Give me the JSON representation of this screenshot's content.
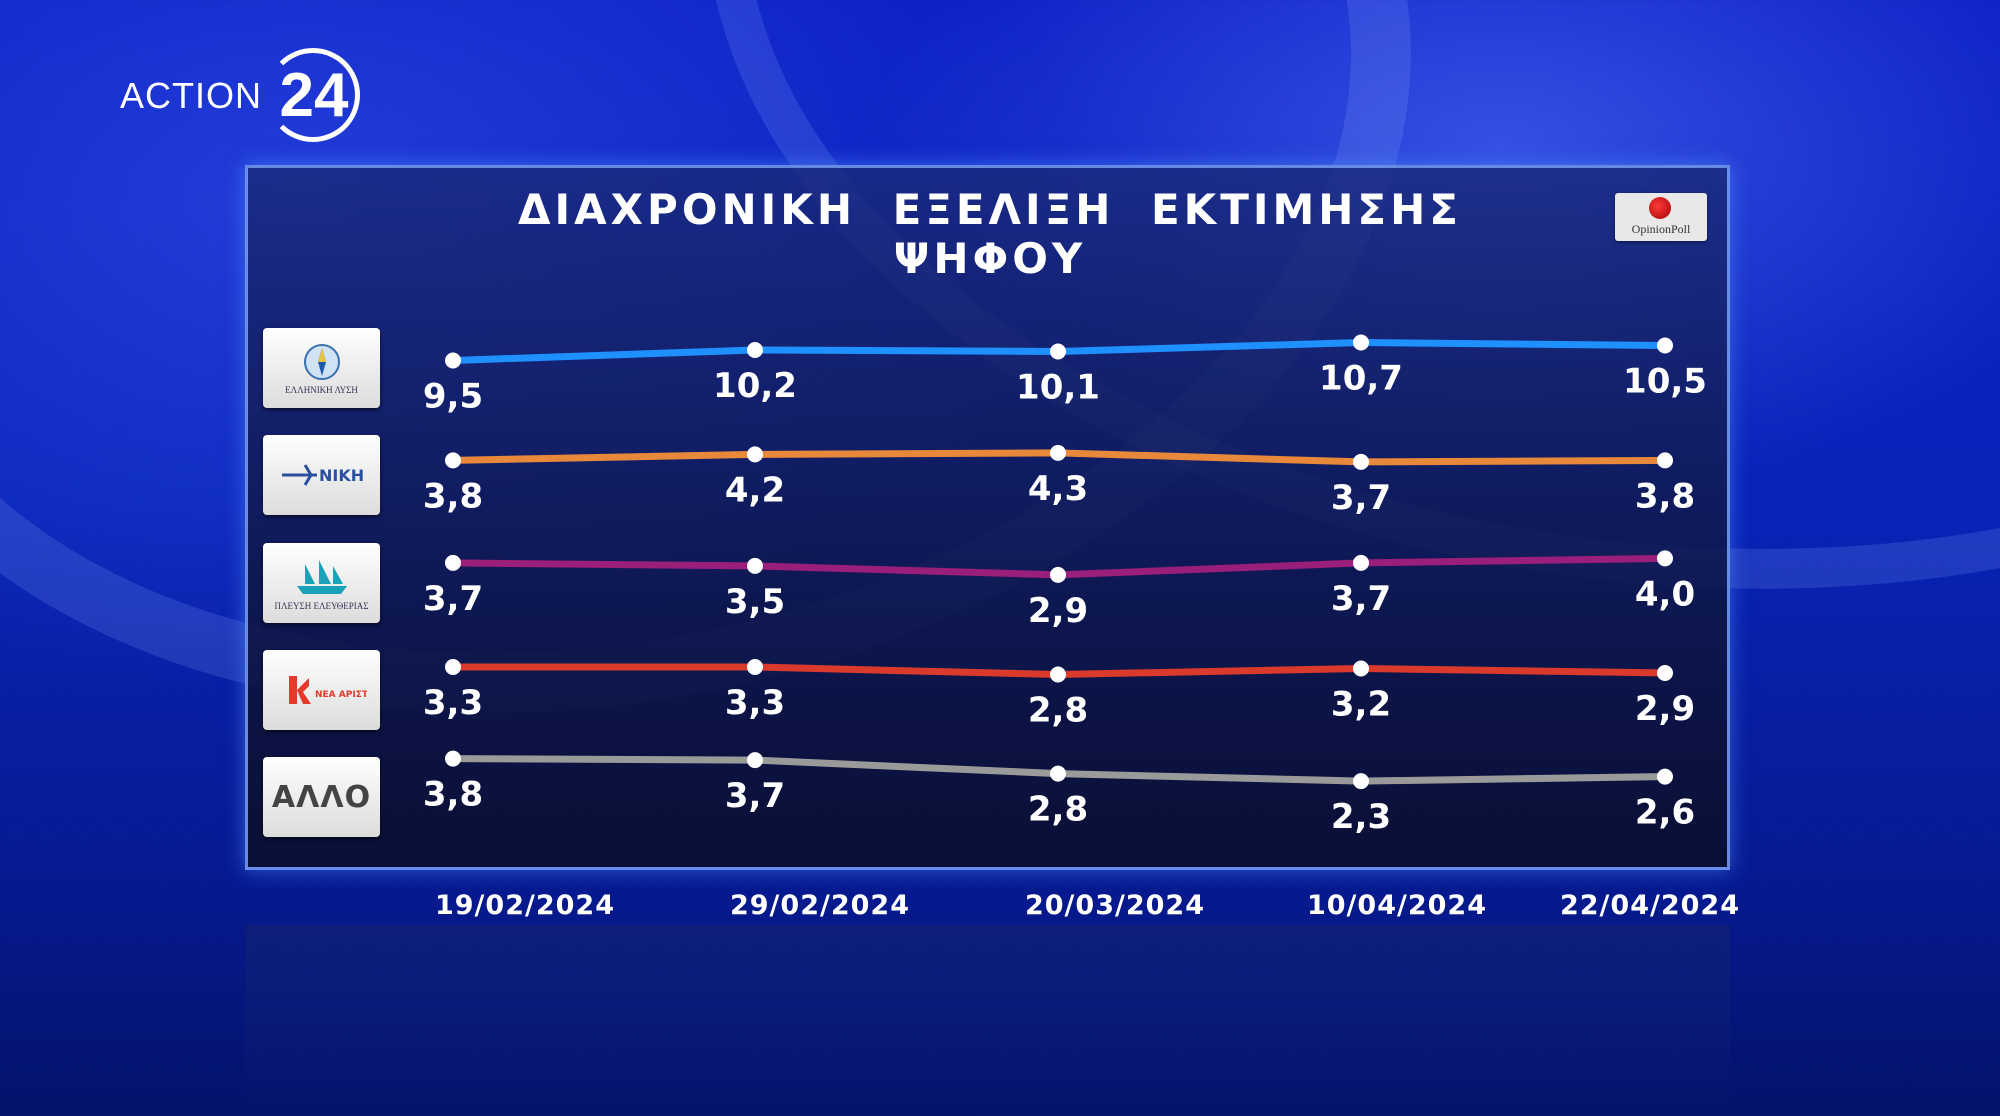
{
  "channel": {
    "text": "ACTION",
    "number": "24"
  },
  "badge": {
    "text": "OpinionPoll"
  },
  "chart_data": {
    "type": "line",
    "title": "ΔΙΑΧΡΟΝΙΚΗ ΕΞΕΛΙΞΗ ΕΚΤΙΜΗΣΗΣ ΨΗΦΟΥ",
    "x": [
      "19/02/2024",
      "29/02/2024",
      "20/03/2024",
      "10/04/2024",
      "22/04/2024"
    ],
    "series": [
      {
        "logo": "elliniki-lysi-logo",
        "logo_caption": "ΕΛΛΗΝΙΚΗ ΛΥΣΗ",
        "color": "#1e90ff",
        "values": [
          9.5,
          10.2,
          10.1,
          10.7,
          10.5
        ],
        "labels": [
          "9,5",
          "10,2",
          "10,1",
          "10,7",
          "10,5"
        ]
      },
      {
        "logo": "niki-logo",
        "logo_caption": "ΝΙΚΗ",
        "color": "#e8883a",
        "values": [
          3.8,
          4.2,
          4.3,
          3.7,
          3.8
        ],
        "labels": [
          "3,8",
          "4,2",
          "4,3",
          "3,7",
          "3,8"
        ]
      },
      {
        "logo": "plefsi-eleftherias-logo",
        "logo_caption": "ΠΛΕΥΣΗ ΕΛΕΥΘΕΡΙΑΣ",
        "color": "#9a1f7a",
        "values": [
          3.7,
          3.5,
          2.9,
          3.7,
          4.0
        ],
        "labels": [
          "3,7",
          "3,5",
          "2,9",
          "3,7",
          "4,0"
        ]
      },
      {
        "logo": "nea-aristera-logo",
        "logo_caption": "ΝΕΑ ΑΡΙΣΤΕΡΑ",
        "color": "#d93a2b",
        "values": [
          3.3,
          3.3,
          2.8,
          3.2,
          2.9
        ],
        "labels": [
          "3,3",
          "3,3",
          "2,8",
          "3,2",
          "2,9"
        ]
      },
      {
        "logo": "allo-logo",
        "logo_caption": "ΑΛΛΟ",
        "color": "#9a9a9a",
        "values": [
          3.8,
          3.7,
          2.8,
          2.3,
          2.6
        ],
        "labels": [
          "3,8",
          "3,7",
          "2,8",
          "2,3",
          "2,6"
        ]
      }
    ]
  }
}
